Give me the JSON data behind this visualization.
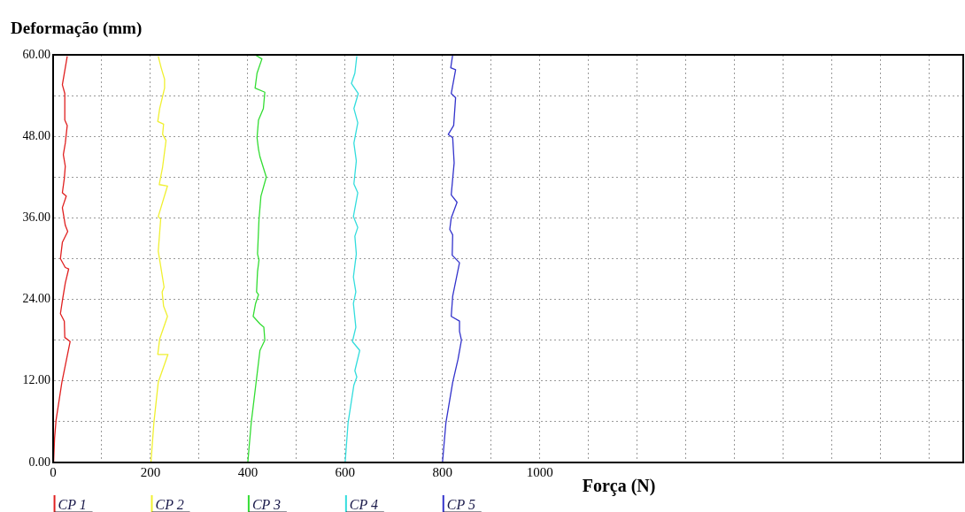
{
  "chart_data": {
    "type": "line",
    "ylabel": "Deformação (mm)",
    "xlabel": "Força (N)",
    "xlim": [
      0,
      1870
    ],
    "xticks": [
      0,
      {
        "value": 100,
        "label": null
      },
      200,
      {
        "value": 300,
        "label": null
      },
      400,
      {
        "value": 500,
        "label": null
      },
      600,
      {
        "value": 700,
        "label": null
      },
      800,
      {
        "value": 900,
        "label": null
      },
      1000,
      {
        "value": 1100,
        "label": null
      },
      {
        "value": 1200,
        "label": null
      },
      {
        "value": 1300,
        "label": null
      },
      {
        "value": 1400,
        "label": null
      },
      {
        "value": 1500,
        "label": null
      },
      {
        "value": 1600,
        "label": null
      },
      {
        "value": 1700,
        "label": null
      },
      {
        "value": 1800,
        "label": null
      }
    ],
    "ylim": [
      0,
      60
    ],
    "yticks": [
      {
        "value": 0,
        "label": "0.00"
      },
      {
        "value": 6,
        "label": null
      },
      {
        "value": 12,
        "label": "12.00"
      },
      {
        "value": 18,
        "label": null
      },
      {
        "value": 24,
        "label": "24.00"
      },
      {
        "value": 30,
        "label": null
      },
      {
        "value": 36,
        "label": "36.00"
      },
      {
        "value": 42,
        "label": null
      },
      {
        "value": 48,
        "label": "48.00"
      },
      {
        "value": 54,
        "label": null
      },
      {
        "value": 60,
        "label": "60.00"
      }
    ],
    "grid": true,
    "legend": "bottom",
    "marker": "none",
    "line_style": "solid",
    "series": [
      {
        "name": "CP 1",
        "color": "#e02020",
        "x": [
          1,
          3,
          6,
          18,
          35,
          24,
          23,
          15,
          19,
          25,
          32,
          25,
          15,
          19,
          30,
          25,
          19,
          27,
          19,
          23,
          25,
          21,
          25,
          29,
          24,
          24,
          19,
          25,
          29
        ],
        "values": [
          0,
          3.6,
          6.2,
          11.8,
          17.8,
          18.4,
          20.8,
          21.9,
          23.8,
          26.4,
          28.5,
          28.7,
          30,
          32.4,
          34,
          34.9,
          37.5,
          39.2,
          39.7,
          41.8,
          43.6,
          45.3,
          47,
          49.6,
          50.4,
          54.3,
          55.6,
          58.1,
          59.8
        ]
      },
      {
        "name": "CP 2",
        "color": "#f0f030",
        "x": [
          201,
          207,
          216,
          236,
          215,
          219,
          235,
          227,
          224,
          228,
          219,
          216,
          221,
          216,
          235,
          218,
          225,
          232,
          225,
          227,
          215,
          219,
          229,
          229,
          222,
          216
        ],
        "values": [
          0,
          5.8,
          11.8,
          15.9,
          15.9,
          18.2,
          21.5,
          23,
          25.1,
          25.8,
          29.8,
          31.1,
          35.8,
          36.2,
          40.7,
          40.9,
          43.5,
          47.4,
          48.3,
          49.8,
          50.2,
          52.1,
          55.1,
          56.4,
          58.1,
          59.8
        ]
      },
      {
        "name": "CP 3",
        "color": "#33dd33",
        "x": [
          400,
          407,
          425,
          435,
          433,
          425,
          411,
          416,
          422,
          418,
          420,
          423,
          420,
          423,
          427,
          438,
          425,
          422,
          419,
          422,
          432,
          435,
          415,
          419,
          429,
          415
        ],
        "values": [
          0,
          5.8,
          16.5,
          18,
          19.9,
          20.4,
          21.5,
          23.4,
          24.7,
          25.1,
          28.1,
          29.8,
          30.7,
          35.8,
          39.2,
          42,
          45,
          46.1,
          47.8,
          50.4,
          52.1,
          54.5,
          55.1,
          57.3,
          59.4,
          60
        ]
      },
      {
        "name": "CP 4",
        "color": "#33dddd",
        "x": [
          600,
          606,
          618,
          624,
          620,
          630,
          615,
          622,
          617,
          622,
          617,
          623,
          620,
          626,
          617,
          626,
          618,
          623,
          618,
          626,
          618,
          627,
          613,
          620,
          624
        ],
        "values": [
          0,
          5.8,
          11.4,
          12.6,
          13.5,
          16.5,
          17.8,
          19.9,
          23.4,
          25.1,
          27.3,
          30.7,
          33.3,
          34.6,
          36.2,
          39.7,
          41,
          44.4,
          47,
          50,
          52.1,
          54.3,
          55.8,
          57.3,
          59.8
        ]
      },
      {
        "name": "CP 5",
        "color": "#3333cc",
        "x": [
          800,
          807,
          821,
          832,
          839,
          835,
          835,
          818,
          821,
          835,
          820,
          821,
          815,
          818,
          830,
          818,
          824,
          821,
          812,
          823,
          827,
          818,
          827,
          817,
          821
        ],
        "values": [
          0,
          5.8,
          11.8,
          15.2,
          18,
          19.3,
          20.8,
          21.5,
          24.5,
          29.4,
          30.5,
          33.5,
          34.3,
          36,
          38.3,
          39.4,
          44.1,
          47.8,
          48.3,
          49.6,
          53.7,
          54.3,
          57.8,
          58.1,
          60
        ]
      }
    ]
  }
}
